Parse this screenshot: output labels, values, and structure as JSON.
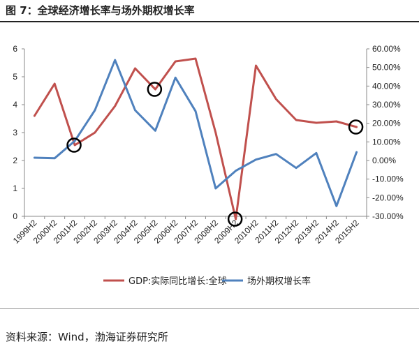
{
  "figure": {
    "title": "图 7：全球经济增长率与场外期权增长率",
    "source": "资料来源：Wind，渤海证券研究所"
  },
  "colors": {
    "gdp": "#C0504D",
    "otc": "#4F81BD",
    "circle": "#000000"
  },
  "chart_data": {
    "type": "line",
    "categories": [
      "1999H2",
      "2000H2",
      "2001H2",
      "2002H2",
      "2003H2",
      "2004H2",
      "2005H2",
      "2006H2",
      "2007H2",
      "2008H2",
      "2009H2",
      "2010H2",
      "2011H2",
      "2012H2",
      "2013H2",
      "2014H2",
      "2015H2"
    ],
    "series": [
      {
        "name": "GDP:实际同比增长:全球",
        "axis": "left",
        "values": [
          3.6,
          4.75,
          2.55,
          3.0,
          3.95,
          5.3,
          4.55,
          5.55,
          5.65,
          3.0,
          -0.1,
          5.4,
          4.2,
          3.45,
          3.35,
          3.4,
          3.2
        ]
      },
      {
        "name": "场外期权增长率",
        "axis": "right",
        "values": [
          1.5,
          1.2,
          10.5,
          27.0,
          54.0,
          27.0,
          16.0,
          44.5,
          26.5,
          -15.0,
          -5.5,
          0.5,
          3.5,
          -4.0,
          4.0,
          -24.5,
          4.5
        ]
      }
    ],
    "circled": [
      {
        "series": 0,
        "category": "2001H2"
      },
      {
        "series": 0,
        "category": "2005H2"
      },
      {
        "series": 0,
        "category": "2009H2"
      },
      {
        "series": 0,
        "category": "2015H2"
      }
    ],
    "y_left": {
      "ylim": [
        0,
        6
      ],
      "ticks": [
        "0",
        "1",
        "2",
        "3",
        "4",
        "5",
        "6"
      ]
    },
    "y_right": {
      "ylim": [
        -30,
        60
      ],
      "ticks": [
        "-30.00%",
        "-20.00%",
        "-10.00%",
        "0.00%",
        "10.00%",
        "20.00%",
        "30.00%",
        "40.00%",
        "50.00%",
        "60.00%"
      ]
    },
    "legend_position": "bottom",
    "grid": false
  }
}
